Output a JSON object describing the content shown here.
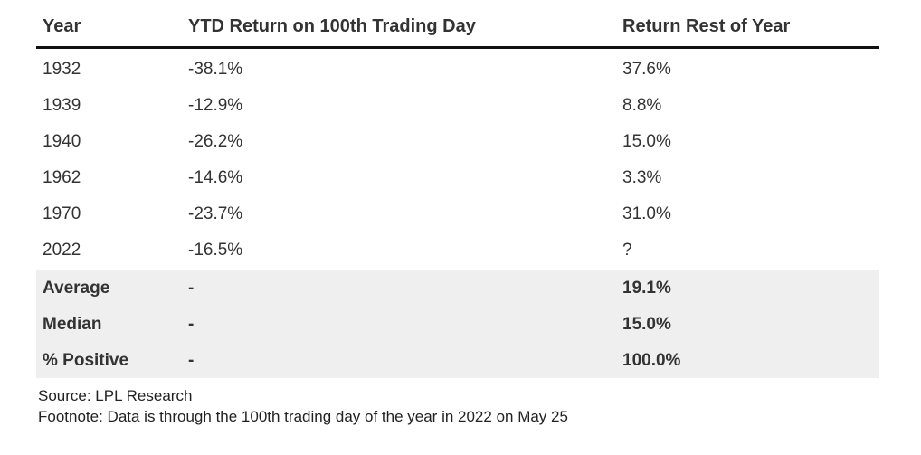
{
  "chart_data": {
    "type": "table",
    "columns": [
      "Year",
      "YTD Return on 100th Trading Day",
      "Return Rest of Year"
    ],
    "rows": [
      [
        "1932",
        "-38.1%",
        "37.6%"
      ],
      [
        "1939",
        "-12.9%",
        "8.8%"
      ],
      [
        "1940",
        "-26.2%",
        "15.0%"
      ],
      [
        "1962",
        "-14.6%",
        "3.3%"
      ],
      [
        "1970",
        "-23.7%",
        "31.0%"
      ],
      [
        "2022",
        "-16.5%",
        "?"
      ]
    ],
    "summary_rows": [
      [
        "Average",
        "-",
        "19.1%"
      ],
      [
        "Median",
        "-",
        "15.0%"
      ],
      [
        "% Positive",
        "-",
        "100.0%"
      ]
    ],
    "source": "Source: LPL Research",
    "footnote": "Footnote: Data is through the 100th trading day of the year in 2022 on May 25",
    "colors": {
      "summary_background": "#efefef",
      "header_rule": "#111111",
      "text": "#333333"
    }
  }
}
